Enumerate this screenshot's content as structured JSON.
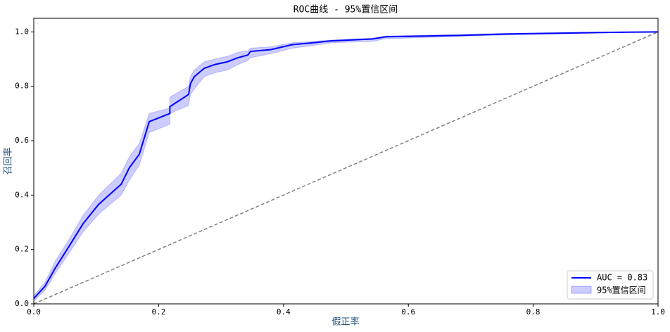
{
  "chart_data": {
    "type": "line",
    "title": "ROC曲线 - 95%置信区间",
    "x_label": "假正率",
    "y_label": "召回率",
    "x": [
      0,
      0.018,
      0.034,
      0.056,
      0.079,
      0.104,
      0.14,
      0.153,
      0.169,
      0.185,
      0.218,
      0.218,
      0.248,
      0.251,
      0.257,
      0.273,
      0.29,
      0.31,
      0.327,
      0.343,
      0.347,
      0.38,
      0.414,
      0.448,
      0.476,
      0.543,
      0.564,
      0.679,
      0.758,
      0.915,
      1
    ],
    "series": [
      {
        "name": "AUC = 0.83",
        "color": "#0000ff",
        "values": [
          0.02,
          0.065,
          0.13,
          0.21,
          0.295,
          0.366,
          0.44,
          0.5,
          0.55,
          0.67,
          0.7,
          0.725,
          0.77,
          0.81,
          0.835,
          0.866,
          0.88,
          0.89,
          0.905,
          0.915,
          0.928,
          0.935,
          0.953,
          0.96,
          0.967,
          0.974,
          0.982,
          0.987,
          0.992,
          0.998,
          1
        ]
      }
    ],
    "band": {
      "name": "95%置信区间",
      "color": "#0000ff",
      "upper": [
        0.03,
        0.08,
        0.155,
        0.235,
        0.325,
        0.4,
        0.48,
        0.54,
        0.59,
        0.7,
        0.72,
        0.76,
        0.8,
        0.835,
        0.86,
        0.89,
        0.9,
        0.91,
        0.925,
        0.93,
        0.94,
        0.945,
        0.96,
        0.965,
        0.97,
        0.977,
        0.985,
        0.99,
        0.995,
        1,
        1
      ],
      "lower": [
        0.01,
        0.05,
        0.11,
        0.185,
        0.265,
        0.33,
        0.4,
        0.455,
        0.51,
        0.63,
        0.66,
        0.7,
        0.73,
        0.77,
        0.79,
        0.835,
        0.85,
        0.86,
        0.88,
        0.895,
        0.905,
        0.92,
        0.94,
        0.95,
        0.96,
        0.965,
        0.975,
        0.983,
        0.989,
        0.996,
        1
      ]
    },
    "xlim": [
      0,
      1
    ],
    "ylim": [
      0,
      1.05
    ],
    "xticks": [
      {
        "value": 0,
        "label": "0.0"
      },
      0.2,
      0.4,
      0.6,
      0.8,
      {
        "value": 1,
        "label": "1.0"
      }
    ],
    "yticks": [
      {
        "value": 0,
        "label": "0.0"
      },
      0.2,
      0.4,
      0.6,
      0.8,
      {
        "value": 1,
        "label": "1.0"
      }
    ],
    "legend": "lower right"
  }
}
